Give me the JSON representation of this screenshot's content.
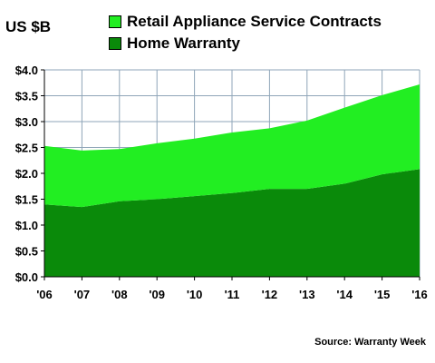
{
  "chart_data": {
    "type": "area",
    "stacked": true,
    "y_unit_label": "US $B",
    "categories": [
      "'06",
      "'07",
      "'08",
      "'09",
      "'10",
      "'11",
      "'12",
      "'13",
      "'14",
      "'15",
      "'16"
    ],
    "series": [
      {
        "name": "Home Warranty",
        "color": "#0a8a0a",
        "values": [
          1.4,
          1.35,
          1.46,
          1.5,
          1.56,
          1.62,
          1.7,
          1.7,
          1.8,
          1.98,
          2.08
        ]
      },
      {
        "name": "Retail Appliance Service Contracts",
        "color": "#22ee22",
        "values": [
          1.13,
          1.09,
          1.01,
          1.08,
          1.11,
          1.17,
          1.17,
          1.32,
          1.47,
          1.53,
          1.64
        ]
      }
    ],
    "totals": [
      2.53,
      2.44,
      2.47,
      2.58,
      2.67,
      2.79,
      2.87,
      3.02,
      3.27,
      3.51,
      3.72
    ],
    "ylim": [
      0,
      4
    ],
    "yticks": [
      "$0.0",
      "$0.5",
      "$1.0",
      "$1.5",
      "$2.0",
      "$2.5",
      "$3.0",
      "$3.5",
      "$4.0"
    ],
    "grid": true,
    "legend_position": "top"
  },
  "source": "Source: Warranty Week"
}
